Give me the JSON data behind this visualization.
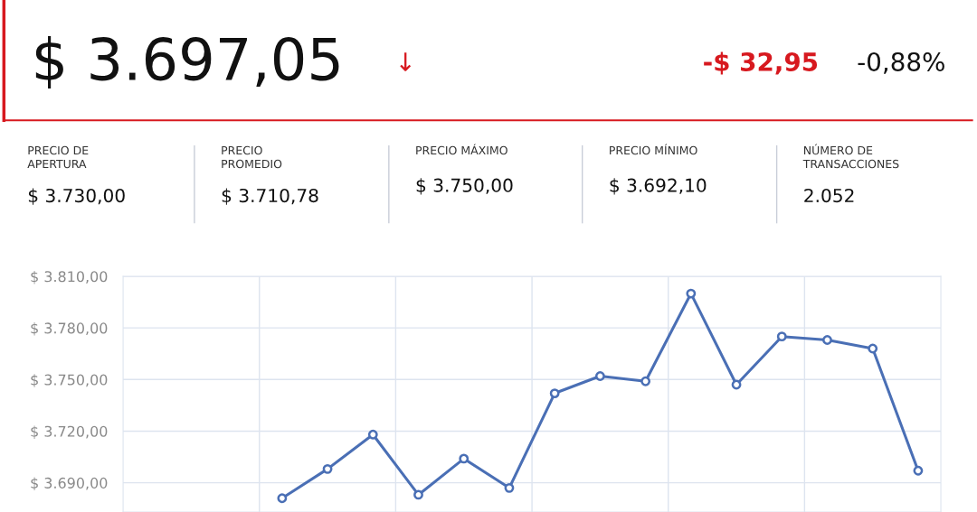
{
  "chart_data": {
    "type": "line",
    "title": "$ 3.697,05",
    "annotations": [
      "↓",
      "-$ 32,95",
      "-0,88%",
      "PRECIO DE\nAPERTURA",
      "$ 3.730,00",
      "PRECIO\nPROMEDIO",
      "$ 3.710,78",
      "PRECIO MÁXIMO",
      "$ 3.750,00",
      "PRECIO MÍNIMO",
      "$ 3.692,10",
      "NÚMERO DE\nTRANSACCIONES",
      "2.052"
    ],
    "categories": [
      null,
      null,
      null,
      null,
      null,
      null,
      null,
      null,
      null,
      null,
      null,
      null,
      null,
      null,
      null,
      null,
      null,
      null
    ],
    "series": [
      {
        "color": "#4a6fb5",
        "values": [
          null,
          null,
          null,
          3681,
          3698,
          3718,
          3683,
          3704,
          3687,
          3742,
          3752,
          3749,
          3800,
          3747,
          3775,
          3773,
          3768,
          3697
        ]
      }
    ],
    "ylim": [
      3673,
      3810
    ],
    "yticks": [
      {
        "value": 3690,
        "label": "$ 3.690,00"
      },
      {
        "value": 3720,
        "label": "$ 3.720,00"
      },
      {
        "value": 3750,
        "label": "$ 3.750,00"
      },
      {
        "value": 3780,
        "label": "$ 3.780,00"
      },
      {
        "value": 3810,
        "label": "$ 3.810,00"
      }
    ],
    "tick_labels": "y",
    "grid": true,
    "marker": "circle",
    "line_style": "solid"
  }
}
